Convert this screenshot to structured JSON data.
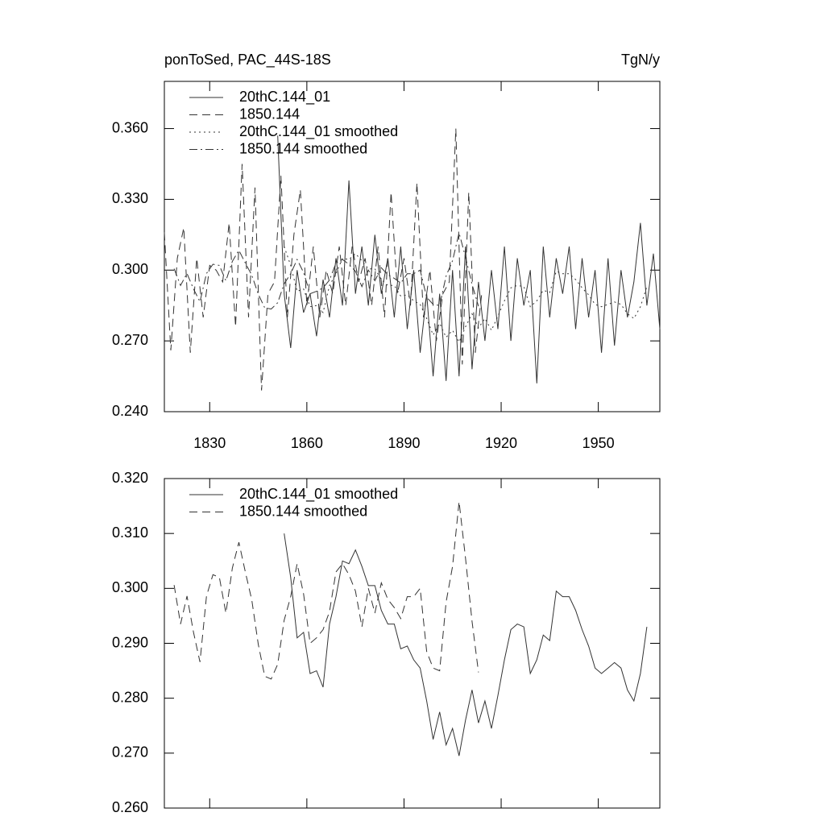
{
  "chart_data": [
    {
      "type": "line",
      "title": "ponToSed, PAC_44S-18S",
      "units": "TgN/y",
      "xlim": [
        1816,
        1969
      ],
      "xticks": [
        1830,
        1860,
        1890,
        1920,
        1950
      ],
      "show_xtick_labels": true,
      "ylim": [
        0.24,
        0.38
      ],
      "yticks": [
        {
          "value": 0.24,
          "label": "0.240"
        },
        {
          "value": 0.27,
          "label": "0.270"
        },
        {
          "value": 0.3,
          "label": "0.300"
        },
        {
          "value": 0.33,
          "label": "0.330"
        },
        {
          "value": 0.36,
          "label": "0.360"
        }
      ],
      "series": [
        {
          "name": "20thC.144_01",
          "color": "#333333",
          "dash": "solid",
          "x": [
            1851,
            1853,
            1855,
            1857,
            1859,
            1861,
            1863,
            1865,
            1867,
            1869,
            1871,
            1873,
            1875,
            1877,
            1879,
            1881,
            1883,
            1885,
            1887,
            1889,
            1891,
            1893,
            1895,
            1897,
            1899,
            1901,
            1903,
            1905,
            1907,
            1909,
            1911,
            1913,
            1915,
            1917,
            1919,
            1921,
            1923,
            1925,
            1927,
            1929,
            1931,
            1933,
            1935,
            1937,
            1939,
            1941,
            1943,
            1945,
            1947,
            1949,
            1951,
            1953,
            1955,
            1957,
            1959,
            1961,
            1963,
            1965,
            1967,
            1969
          ],
          "values": [
            0.357,
            0.29,
            0.267,
            0.3,
            0.282,
            0.29,
            0.272,
            0.296,
            0.28,
            0.305,
            0.285,
            0.338,
            0.29,
            0.31,
            0.285,
            0.315,
            0.29,
            0.305,
            0.28,
            0.31,
            0.275,
            0.3,
            0.265,
            0.29,
            0.255,
            0.29,
            0.253,
            0.3,
            0.255,
            0.31,
            0.258,
            0.295,
            0.27,
            0.3,
            0.275,
            0.31,
            0.27,
            0.305,
            0.285,
            0.3,
            0.252,
            0.31,
            0.28,
            0.305,
            0.29,
            0.31,
            0.275,
            0.305,
            0.28,
            0.3,
            0.265,
            0.305,
            0.268,
            0.3,
            0.28,
            0.295,
            0.32,
            0.285,
            0.307,
            0.275
          ]
        },
        {
          "name": "1850.144",
          "color": "#333333",
          "dash": "dashed",
          "x": [
            1816,
            1818,
            1820,
            1822,
            1824,
            1826,
            1828,
            1830,
            1832,
            1834,
            1836,
            1838,
            1840,
            1842,
            1844,
            1846,
            1848,
            1850,
            1852,
            1854,
            1856,
            1858,
            1860,
            1862,
            1864,
            1866,
            1868,
            1870,
            1872,
            1874,
            1876,
            1878,
            1880,
            1882,
            1884,
            1886,
            1888,
            1890,
            1892,
            1894,
            1896,
            1898,
            1900,
            1902,
            1904,
            1906,
            1908,
            1910,
            1912,
            1914
          ],
          "values": [
            0.316,
            0.266,
            0.305,
            0.318,
            0.265,
            0.305,
            0.28,
            0.302,
            0.3,
            0.295,
            0.32,
            0.276,
            0.345,
            0.28,
            0.335,
            0.249,
            0.29,
            0.295,
            0.34,
            0.28,
            0.315,
            0.334,
            0.285,
            0.31,
            0.28,
            0.3,
            0.29,
            0.31,
            0.285,
            0.31,
            0.295,
            0.305,
            0.285,
            0.31,
            0.28,
            0.333,
            0.29,
            0.305,
            0.285,
            0.337,
            0.28,
            0.3,
            0.27,
            0.29,
            0.295,
            0.36,
            0.26,
            0.333,
            0.265,
            0.29
          ]
        },
        {
          "name": "20thC.144_01 smoothed",
          "color": "#333333",
          "dash": "dotted",
          "x": [
            1853,
            1855,
            1857,
            1859,
            1861,
            1863,
            1865,
            1867,
            1869,
            1871,
            1873,
            1875,
            1877,
            1879,
            1881,
            1883,
            1885,
            1887,
            1889,
            1891,
            1893,
            1895,
            1897,
            1899,
            1901,
            1903,
            1905,
            1907,
            1909,
            1911,
            1913,
            1915,
            1917,
            1919,
            1921,
            1923,
            1925,
            1927,
            1929,
            1931,
            1933,
            1935,
            1937,
            1939,
            1941,
            1943,
            1945,
            1947,
            1949,
            1951,
            1953,
            1955,
            1957,
            1959,
            1961,
            1963,
            1965
          ],
          "values": [
            0.31,
            0.302,
            0.291,
            0.292,
            0.2845,
            0.285,
            0.282,
            0.2935,
            0.2985,
            0.305,
            0.3045,
            0.307,
            0.304,
            0.3005,
            0.3005,
            0.296,
            0.2935,
            0.2935,
            0.289,
            0.2895,
            0.287,
            0.2855,
            0.2795,
            0.2725,
            0.2775,
            0.2715,
            0.2745,
            0.2695,
            0.276,
            0.2815,
            0.2755,
            0.2795,
            0.2745,
            0.2805,
            0.287,
            0.2925,
            0.2935,
            0.293,
            0.2845,
            0.287,
            0.2915,
            0.2905,
            0.2995,
            0.2985,
            0.2985,
            0.296,
            0.2925,
            0.2895,
            0.2855,
            0.2845,
            0.2855,
            0.2865,
            0.2855,
            0.2815,
            0.2795,
            0.2845,
            0.293
          ]
        },
        {
          "name": "1850.144 smoothed",
          "color": "#333333",
          "dash": "dashdot",
          "x": [
            1819,
            1821,
            1823,
            1825,
            1827,
            1829,
            1831,
            1833,
            1835,
            1837,
            1839,
            1841,
            1843,
            1845,
            1847,
            1849,
            1851,
            1853,
            1855,
            1857,
            1859,
            1861,
            1863,
            1865,
            1867,
            1869,
            1871,
            1873,
            1875,
            1877,
            1879,
            1881,
            1883,
            1885,
            1887,
            1889,
            1891,
            1893,
            1895,
            1897,
            1899,
            1901,
            1903,
            1905,
            1907,
            1909,
            1911,
            1913
          ],
          "values": [
            0.3006,
            0.2935,
            0.2986,
            0.292,
            0.2866,
            0.2986,
            0.3025,
            0.302,
            0.2955,
            0.3037,
            0.3084,
            0.303,
            0.2979,
            0.2898,
            0.284,
            0.2835,
            0.2862,
            0.2942,
            0.2985,
            0.3045,
            0.299,
            0.29,
            0.291,
            0.2925,
            0.2958,
            0.303,
            0.3045,
            0.3025,
            0.2995,
            0.293,
            0.3,
            0.2955,
            0.301,
            0.298,
            0.2965,
            0.2945,
            0.2985,
            0.2985,
            0.3,
            0.2885,
            0.2855,
            0.285,
            0.2975,
            0.304,
            0.3158,
            0.3055,
            0.294,
            0.2847
          ]
        }
      ]
    },
    {
      "type": "line",
      "xlim": [
        1816,
        1969
      ],
      "xticks": [
        1830,
        1860,
        1890,
        1920,
        1950
      ],
      "show_xtick_labels": false,
      "ylim": [
        0.26,
        0.32
      ],
      "yticks": [
        {
          "value": 0.26,
          "label": "0.260"
        },
        {
          "value": 0.27,
          "label": "0.270"
        },
        {
          "value": 0.28,
          "label": "0.280"
        },
        {
          "value": 0.29,
          "label": "0.290"
        },
        {
          "value": 0.3,
          "label": "0.300"
        },
        {
          "value": 0.31,
          "label": "0.310"
        },
        {
          "value": 0.32,
          "label": "0.320"
        }
      ],
      "series": [
        {
          "name": "20thC.144_01 smoothed",
          "color": "#333333",
          "dash": "solid",
          "x": [
            1853,
            1855,
            1857,
            1859,
            1861,
            1863,
            1865,
            1867,
            1869,
            1871,
            1873,
            1875,
            1877,
            1879,
            1881,
            1883,
            1885,
            1887,
            1889,
            1891,
            1893,
            1895,
            1897,
            1899,
            1901,
            1903,
            1905,
            1907,
            1909,
            1911,
            1913,
            1915,
            1917,
            1919,
            1921,
            1923,
            1925,
            1927,
            1929,
            1931,
            1933,
            1935,
            1937,
            1939,
            1941,
            1943,
            1945,
            1947,
            1949,
            1951,
            1953,
            1955,
            1957,
            1959,
            1961,
            1963,
            1965
          ],
          "values": [
            0.31,
            0.302,
            0.291,
            0.292,
            0.2845,
            0.285,
            0.282,
            0.2935,
            0.2985,
            0.305,
            0.3045,
            0.307,
            0.304,
            0.3005,
            0.3005,
            0.296,
            0.2935,
            0.2935,
            0.289,
            0.2895,
            0.287,
            0.2855,
            0.2795,
            0.2725,
            0.2775,
            0.2715,
            0.2745,
            0.2695,
            0.276,
            0.2815,
            0.2755,
            0.2795,
            0.2745,
            0.2805,
            0.287,
            0.2925,
            0.2935,
            0.293,
            0.2845,
            0.287,
            0.2915,
            0.2905,
            0.2995,
            0.2985,
            0.2985,
            0.296,
            0.2925,
            0.2895,
            0.2855,
            0.2845,
            0.2855,
            0.2865,
            0.2855,
            0.2815,
            0.2795,
            0.2845,
            0.293
          ]
        },
        {
          "name": "1850.144 smoothed",
          "color": "#333333",
          "dash": "dashed",
          "x": [
            1819,
            1821,
            1823,
            1825,
            1827,
            1829,
            1831,
            1833,
            1835,
            1837,
            1839,
            1841,
            1843,
            1845,
            1847,
            1849,
            1851,
            1853,
            1855,
            1857,
            1859,
            1861,
            1863,
            1865,
            1867,
            1869,
            1871,
            1873,
            1875,
            1877,
            1879,
            1881,
            1883,
            1885,
            1887,
            1889,
            1891,
            1893,
            1895,
            1897,
            1899,
            1901,
            1903,
            1905,
            1907,
            1909,
            1911,
            1913
          ],
          "values": [
            0.3006,
            0.2935,
            0.2986,
            0.292,
            0.2866,
            0.2986,
            0.3025,
            0.302,
            0.2955,
            0.3037,
            0.3084,
            0.303,
            0.2979,
            0.2898,
            0.284,
            0.2835,
            0.2862,
            0.2942,
            0.2985,
            0.3045,
            0.299,
            0.29,
            0.291,
            0.2925,
            0.2958,
            0.303,
            0.3045,
            0.3025,
            0.2995,
            0.293,
            0.3,
            0.2955,
            0.301,
            0.298,
            0.2965,
            0.2945,
            0.2985,
            0.2985,
            0.3,
            0.2885,
            0.2855,
            0.285,
            0.2975,
            0.304,
            0.3158,
            0.3055,
            0.294,
            0.2847
          ]
        }
      ]
    }
  ]
}
